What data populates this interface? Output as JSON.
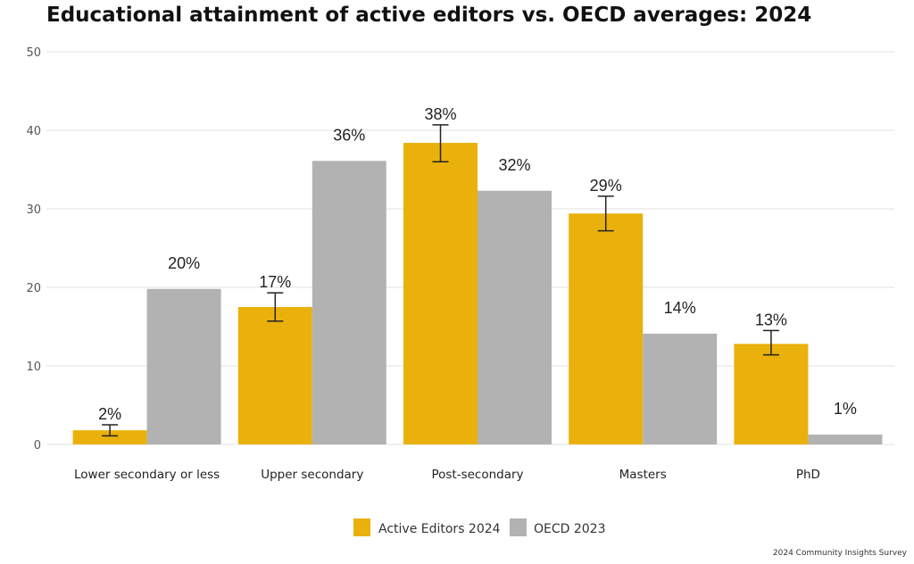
{
  "chart_data": {
    "type": "bar",
    "title": "Educational attainment of active editors vs. OECD averages: 2024",
    "xlabel": "",
    "ylabel": "",
    "ylim": [
      0,
      50
    ],
    "yticks": [
      0,
      10,
      20,
      30,
      40,
      50
    ],
    "grid": true,
    "legend_position": "bottom-center",
    "categories": [
      "Lower secondary or less",
      "Upper secondary",
      "Post-secondary",
      "Masters",
      "PhD"
    ],
    "series": [
      {
        "name": "Active Editors 2024",
        "color": "#EAB10C",
        "values": [
          1.8,
          17.5,
          38.4,
          29.4,
          12.8
        ],
        "labels": [
          "2%",
          "17%",
          "38%",
          "29%",
          "13%"
        ],
        "error_low": [
          1.1,
          15.7,
          36.0,
          27.2,
          11.4
        ],
        "error_high": [
          2.5,
          19.3,
          40.7,
          31.6,
          14.5
        ]
      },
      {
        "name": "OECD 2023",
        "color": "#B2B2B2",
        "values": [
          19.8,
          36.1,
          32.3,
          14.1,
          1.25
        ],
        "labels": [
          "20%",
          "36%",
          "32%",
          "14%",
          "1%"
        ]
      }
    ],
    "source": "2024 Community Insights Survey"
  }
}
